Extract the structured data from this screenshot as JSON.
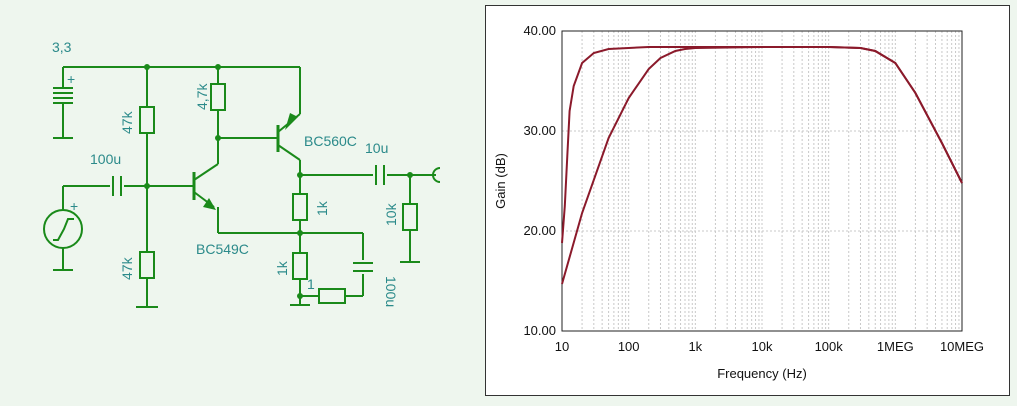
{
  "schematic": {
    "supply_label": "3,3",
    "r_bias_top_label": "47k",
    "r_bias_bottom_label": "47k",
    "c_in_label": "100u",
    "r_collector_label": "4,7k",
    "q1_label": "BC549C",
    "q2_label": "BC560C",
    "c_out_label": "10u",
    "r_load_label": "10k",
    "r_emitter_label": "1k",
    "r_feedback_label": "1k",
    "r_series_label": "1",
    "c_bypass_label": "100u",
    "battery_plus": "+",
    "source_plus": "+"
  },
  "chart_data": {
    "type": "line",
    "xlabel": "Frequency (Hz)",
    "ylabel": "Gain (dB)",
    "x_scale": "log",
    "xlim": [
      10,
      10000000
    ],
    "ylim": [
      10,
      40
    ],
    "x_ticks": [
      10,
      100,
      1000,
      10000,
      100000,
      1000000,
      10000000
    ],
    "x_tick_labels": [
      "10",
      "100",
      "1k",
      "10k",
      "100k",
      "1MEG",
      "10MEG"
    ],
    "y_ticks": [
      10,
      20,
      30,
      40
    ],
    "y_tick_labels": [
      "10.00",
      "20.00",
      "30.00",
      "40.00"
    ],
    "grid": true,
    "line_color": "#8b1a2b",
    "series": [
      {
        "x": [
          10,
          11,
          12,
          13,
          15,
          20,
          30,
          50,
          100,
          200,
          1000,
          10000,
          100000,
          300000,
          500000,
          1000000,
          2000000,
          5000000,
          10000000
        ],
        "y": [
          18.8,
          22.5,
          27.5,
          32,
          34.5,
          36.8,
          37.8,
          38.2,
          38.3,
          38.4,
          38.4,
          38.4,
          38.4,
          38.3,
          38.0,
          36.8,
          33.8,
          28.8,
          24.8
        ]
      },
      {
        "x": [
          10,
          20,
          50,
          100,
          200,
          300,
          500,
          700,
          1000,
          10000,
          100000,
          300000,
          500000,
          1000000,
          2000000,
          5000000,
          10000000
        ],
        "y": [
          14.7,
          21.8,
          29.3,
          33.3,
          36.2,
          37.3,
          38.0,
          38.2,
          38.3,
          38.4,
          38.4,
          38.3,
          38.0,
          36.8,
          33.8,
          28.8,
          24.8
        ]
      }
    ]
  }
}
